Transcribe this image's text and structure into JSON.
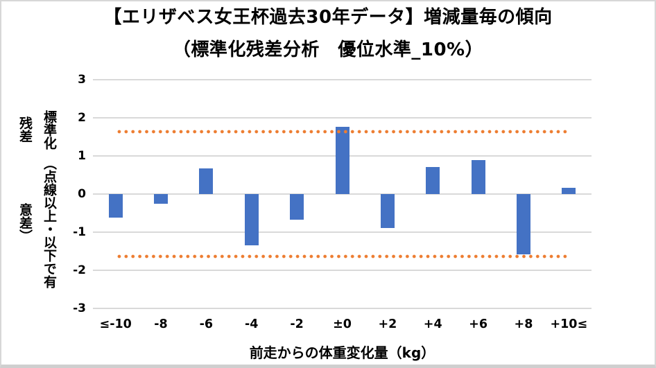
{
  "chart_data": {
    "type": "bar",
    "title": "【エリザベス女王杯過去30年データ】増減量毎の傾向",
    "subtitle": "（標準化残差分析　優位水準_10%）",
    "categories": [
      "≤-10",
      "-8",
      "-6",
      "-4",
      "-2",
      "±0",
      "+2",
      "+4",
      "+6",
      "+8",
      "+10≤"
    ],
    "values": [
      -0.62,
      -0.25,
      0.68,
      -1.35,
      -0.67,
      1.76,
      -0.89,
      0.71,
      0.9,
      -1.59,
      0.16
    ],
    "xlabel": "前走からの体重変化量（kg）",
    "ylabel": "標準化残差",
    "ylabel_note": "（点線以上・以下で有意差）",
    "ylim": [
      -3,
      3
    ],
    "yticks": [
      3,
      2,
      1,
      0,
      -1,
      -2,
      -3
    ],
    "significance_lines": [
      1.645,
      -1.645
    ],
    "grid": true,
    "legend": false,
    "bar_color": "#4472C4",
    "significance_line_color": "#ED7D31",
    "gridline_color": "#D9D9D9"
  }
}
